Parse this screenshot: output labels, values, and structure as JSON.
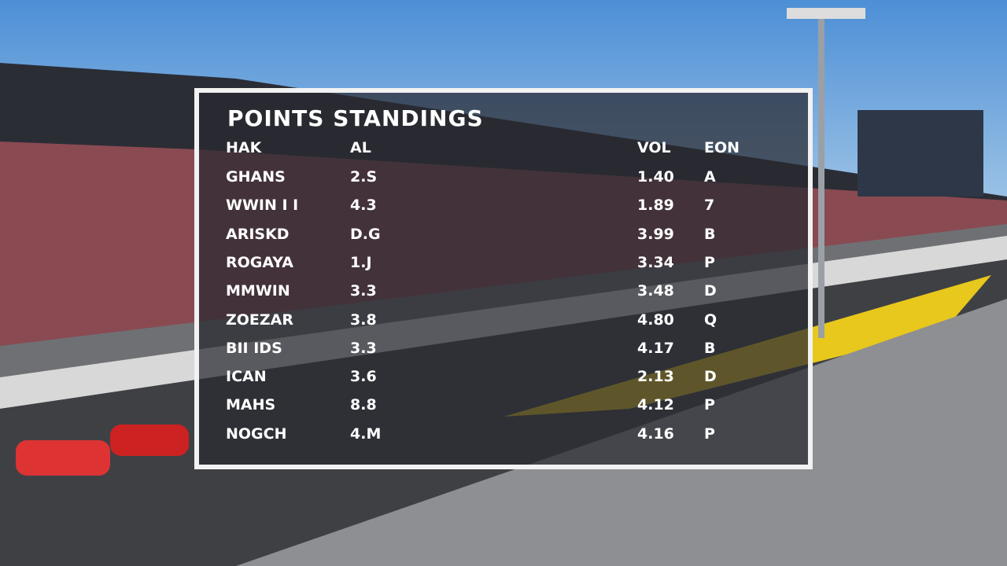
{
  "overlay": {
    "title": "POINTS STANDINGS",
    "columns": [
      "HAK",
      "AL",
      "VOL",
      "EON"
    ],
    "rows": [
      [
        "GHANS",
        "2.S",
        "1.40",
        "A"
      ],
      [
        "WWIN I I",
        "4.3",
        "1.89",
        "7"
      ],
      [
        "ARISKD",
        "D.G",
        "3.99",
        "B"
      ],
      [
        "ROGAYA",
        "1.J",
        "3.34",
        "P"
      ],
      [
        "MMWIN",
        "3.3",
        "3.48",
        "D"
      ],
      [
        "ZOEZAR",
        "3.8",
        "4.80",
        "Q"
      ],
      [
        "BII IDS",
        "3.3",
        "4.17",
        "B"
      ],
      [
        "ICAN",
        "3.6",
        "2.13",
        "D"
      ],
      [
        "MAHS",
        "8.8",
        "4.12",
        "P"
      ],
      [
        "NOGCH",
        "4.M",
        "4.16",
        "P"
      ]
    ]
  }
}
